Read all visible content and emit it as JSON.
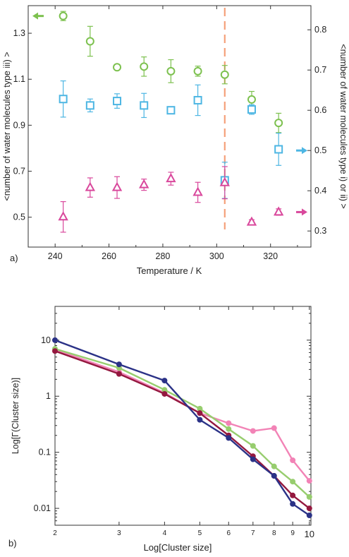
{
  "chart_data": [
    {
      "panel_label": "a)",
      "type": "scatter",
      "xlabel": "Temperature / K",
      "ylabel_left": "<number of water molecules type iii) >",
      "ylabel_right": "<number of water molecules type i) or ii) >",
      "xlim": [
        230,
        335
      ],
      "ylim_left": [
        0.37,
        1.42
      ],
      "ylim_right": [
        0.26,
        0.86
      ],
      "x_ticks": [
        240,
        260,
        280,
        300,
        320
      ],
      "y_ticks_left": [
        0.5,
        0.7,
        0.9,
        1.1,
        1.3
      ],
      "y_ticks_right": [
        0.3,
        0.4,
        0.5,
        0.6,
        0.7,
        0.8
      ],
      "vline": {
        "x": 303,
        "color": "#f5a07a"
      },
      "series": [
        {
          "marker": "circle",
          "axis": "left",
          "color": "#7dc14f",
          "x": [
            243,
            253,
            263,
            273,
            283,
            293,
            303,
            313,
            323
          ],
          "y": [
            1.375,
            1.265,
            1.152,
            1.155,
            1.135,
            1.135,
            1.12,
            1.012,
            0.91
          ],
          "err": [
            0.02,
            0.065,
            0.006,
            0.042,
            0.05,
            0.022,
            0.04,
            0.035,
            0.042
          ]
        },
        {
          "marker": "square",
          "axis": "right",
          "color": "#4db6e3",
          "x": [
            243,
            253,
            263,
            273,
            283,
            293,
            303,
            313,
            323
          ],
          "y": [
            0.628,
            0.612,
            0.623,
            0.612,
            0.6,
            0.625,
            0.426,
            0.602,
            0.503
          ],
          "err": [
            0.045,
            0.016,
            0.018,
            0.03,
            0.004,
            0.038,
            0.045,
            0.012,
            0.04
          ]
        },
        {
          "marker": "triangle",
          "axis": "right",
          "color": "#d9489c",
          "x": [
            243,
            253,
            263,
            273,
            283,
            293,
            303,
            313,
            323
          ],
          "y": [
            0.335,
            0.408,
            0.408,
            0.415,
            0.43,
            0.396,
            0.42,
            0.322,
            0.347
          ],
          "err": [
            0.038,
            0.024,
            0.027,
            0.014,
            0.016,
            0.025,
            0.04,
            0.006,
            0.008
          ]
        }
      ],
      "axis_arrows": [
        {
          "side": "left",
          "y": 1.375,
          "color": "#7dc14f"
        },
        {
          "side": "right",
          "y": 0.5,
          "color": "#4db6e3"
        },
        {
          "side": "right",
          "y": 0.347,
          "color": "#d9489c"
        }
      ]
    },
    {
      "panel_label": "b)",
      "type": "line",
      "xlabel": "Log[Cluster size]",
      "ylabel": "Log[Γ(Cluster size)]",
      "x_scale": "log",
      "y_scale": "log",
      "xlim": [
        2,
        10.1
      ],
      "ylim": [
        0.005,
        40
      ],
      "x_ticks": [
        2,
        3,
        4,
        5,
        6,
        7,
        8,
        9,
        10
      ],
      "y_ticks": [
        0.01,
        0.1,
        1,
        10
      ],
      "x_tick_labels": [
        "2",
        "3",
        "4",
        "5",
        "6",
        "7",
        "8",
        "9",
        "10"
      ],
      "y_tick_labels": [
        "0.01",
        "0.1",
        "1",
        "10"
      ],
      "series": [
        {
          "color": "#f283b6",
          "x": [
            2,
            3,
            4,
            5,
            6,
            7,
            8,
            9,
            10
          ],
          "y": [
            6.8,
            2.7,
            1.15,
            0.5,
            0.33,
            0.24,
            0.27,
            0.072,
            0.031
          ]
        },
        {
          "color": "#97cd6e",
          "x": [
            2,
            3,
            4,
            5,
            6,
            7,
            8,
            9,
            10
          ],
          "y": [
            7.0,
            3.2,
            1.3,
            0.6,
            0.26,
            0.13,
            0.056,
            0.03,
            0.016
          ]
        },
        {
          "color": "#94183f",
          "x": [
            2,
            3,
            4,
            5,
            6,
            7,
            8,
            9,
            10
          ],
          "y": [
            6.4,
            2.5,
            1.1,
            0.5,
            0.2,
            0.085,
            0.038,
            0.017,
            0.01
          ]
        },
        {
          "color": "#2b3287",
          "x": [
            2,
            3,
            4,
            5,
            6,
            7,
            8,
            9,
            10
          ],
          "y": [
            10.0,
            3.7,
            1.9,
            0.38,
            0.18,
            0.075,
            0.038,
            0.012,
            0.0075
          ]
        }
      ]
    }
  ]
}
